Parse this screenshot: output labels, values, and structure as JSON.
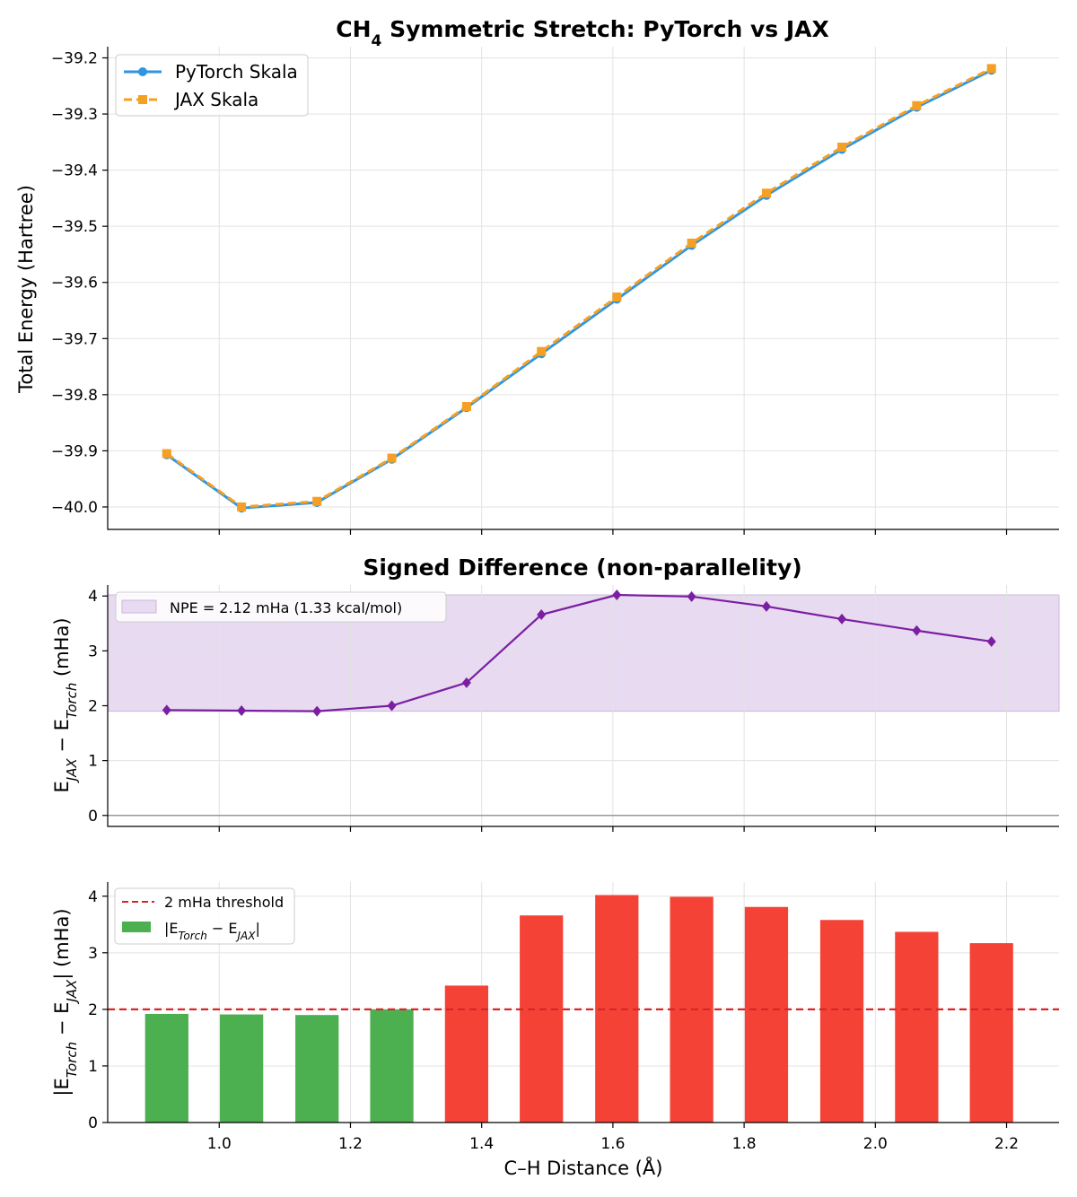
{
  "colors": {
    "pytorch": "#2e96e0",
    "jax": "#f5a024",
    "diff": "#7b1fa2",
    "band": "#e8daf0",
    "pass": "#4caf50",
    "fail": "#f44336",
    "threshold": "#d62728"
  },
  "chart_data": [
    {
      "type": "line",
      "title": "CH4 Symmetric Stretch: PyTorch vs JAX",
      "title_main": "CH",
      "title_sub": "4",
      "title_rest": " Symmetric Stretch: PyTorch vs JAX",
      "xlabel": "",
      "ylabel": "Total Energy (Hartree)",
      "xlim": [
        0.83,
        2.28
      ],
      "ylim": [
        -40.04,
        -39.18
      ],
      "yticks": [
        -40.0,
        -39.9,
        -39.8,
        -39.7,
        -39.6,
        -39.5,
        -39.4,
        -39.3,
        -39.2
      ],
      "ytick_labels": [
        "−40.0",
        "−39.9",
        "−39.8",
        "−39.7",
        "−39.6",
        "−39.5",
        "−39.4",
        "−39.3",
        "−39.2"
      ],
      "xticks": [
        1.0,
        1.2,
        1.4,
        1.6,
        1.8,
        2.0,
        2.2
      ],
      "grid": true,
      "legend_position": "top-left",
      "x": [
        0.92,
        1.034,
        1.149,
        1.263,
        1.377,
        1.491,
        1.606,
        1.72,
        1.834,
        1.949,
        2.063,
        2.177
      ],
      "series": [
        {
          "name": "PyTorch Skala",
          "marker": "circle",
          "style": "solid",
          "values": [
            -39.907,
            -40.002,
            -39.992,
            -39.915,
            -39.823,
            -39.727,
            -39.63,
            -39.534,
            -39.445,
            -39.363,
            -39.288,
            -39.222
          ]
        },
        {
          "name": "JAX Skala",
          "marker": "square",
          "style": "dashed",
          "values": [
            -39.905,
            -40.0,
            -39.99,
            -39.913,
            -39.821,
            -39.723,
            -39.626,
            -39.53,
            -39.441,
            -39.359,
            -39.285,
            -39.219
          ]
        }
      ]
    },
    {
      "type": "line",
      "title": "Signed Difference (non-parallelity)",
      "ylabel_main": "E",
      "ylabel_sub1": "JAX",
      "ylabel_mid": " − E",
      "ylabel_sub2": "Torch",
      "ylabel_rest": " (mHa)",
      "xlim": [
        0.83,
        2.28
      ],
      "ylim": [
        -0.2,
        4.2
      ],
      "yticks": [
        0,
        1,
        2,
        3,
        4
      ],
      "xticks": [
        1.0,
        1.2,
        1.4,
        1.6,
        1.8,
        2.0,
        2.2
      ],
      "grid": true,
      "legend_position": "top-left",
      "band": {
        "label": "NPE = 2.12 mHa (1.33 kcal/mol)",
        "from": 1.9,
        "to": 4.02
      },
      "x": [
        0.92,
        1.034,
        1.149,
        1.263,
        1.377,
        1.491,
        1.606,
        1.72,
        1.834,
        1.949,
        2.063,
        2.177
      ],
      "values": [
        1.92,
        1.91,
        1.9,
        2.0,
        2.42,
        3.66,
        4.02,
        3.99,
        3.81,
        3.58,
        3.37,
        3.17
      ]
    },
    {
      "type": "bar",
      "xlabel": "C–H Distance (Å)",
      "ylabel_main": "|E",
      "ylabel_sub1": "Torch",
      "ylabel_mid": " − E",
      "ylabel_sub2": "JAX",
      "ylabel_rest": "| (mHa)",
      "xlim": [
        0.83,
        2.28
      ],
      "ylim": [
        0,
        4.25
      ],
      "yticks": [
        0,
        1,
        2,
        3,
        4
      ],
      "xticks": [
        1.0,
        1.2,
        1.4,
        1.6,
        1.8,
        2.0,
        2.2
      ],
      "xtick_labels": [
        "1.0",
        "1.2",
        "1.4",
        "1.6",
        "1.8",
        "2.0",
        "2.2"
      ],
      "grid": true,
      "legend_position": "top-left",
      "threshold": {
        "value": 2.0,
        "label": "2 mHa threshold"
      },
      "bar_legend": {
        "main": "|E",
        "sub1": "Torch",
        "mid": " − E",
        "sub2": "JAX",
        "rest": "|"
      },
      "x": [
        0.92,
        1.034,
        1.149,
        1.263,
        1.377,
        1.491,
        1.606,
        1.72,
        1.834,
        1.949,
        2.063,
        2.177
      ],
      "bar_width": 0.066,
      "values": [
        1.92,
        1.91,
        1.9,
        2.0,
        2.42,
        3.66,
        4.02,
        3.99,
        3.81,
        3.58,
        3.37,
        3.17
      ]
    }
  ]
}
